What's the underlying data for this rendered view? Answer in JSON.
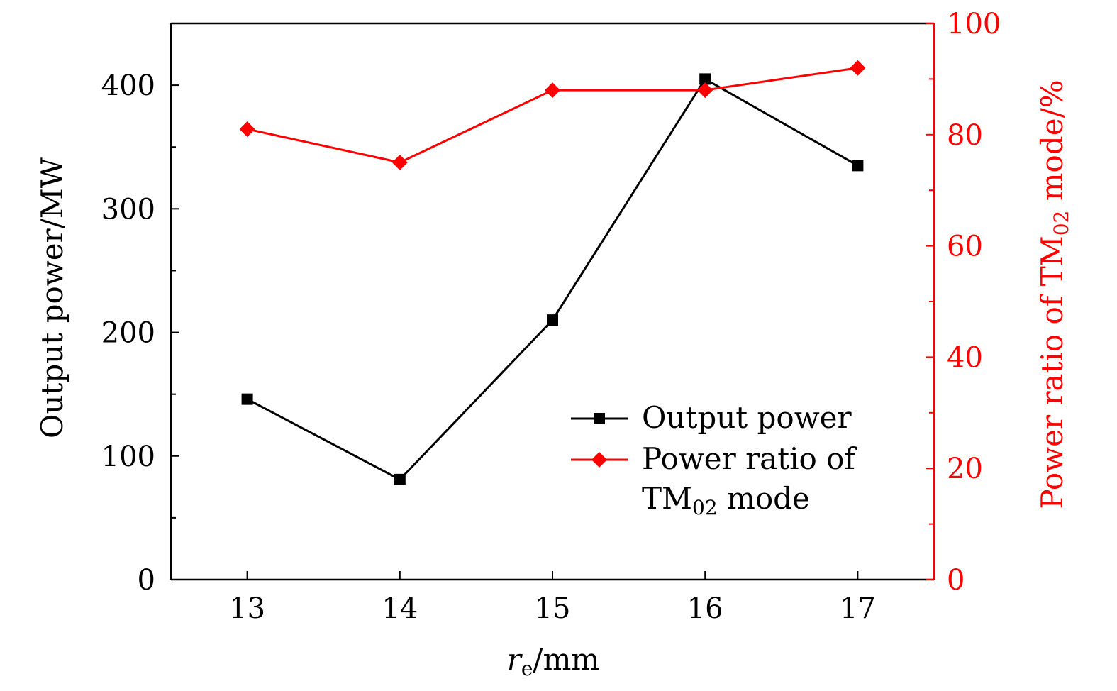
{
  "chart_data": {
    "type": "line",
    "x": [
      13,
      14,
      15,
      16,
      17
    ],
    "xlabel": "r",
    "xlabel_sub": "e",
    "xlabel_unit": "/mm",
    "xlim": [
      12.5,
      17.5
    ],
    "xticks": [
      "13",
      "14",
      "15",
      "16",
      "17"
    ],
    "y_left": {
      "label": "Output power/MW",
      "lim": [
        0,
        450
      ],
      "ticks": [
        "0",
        "100",
        "200",
        "300",
        "400"
      ],
      "color": "#000000"
    },
    "y_right": {
      "label_pre": "Power ratio of TM",
      "label_sub": "02",
      "label_post": " mode/%",
      "lim": [
        0,
        100
      ],
      "ticks": [
        "0",
        "20",
        "40",
        "60",
        "80",
        "100"
      ],
      "color": "#ff0000"
    },
    "series": [
      {
        "name": "Output power",
        "axis": "left",
        "color": "#000000",
        "marker": "square",
        "values": [
          146,
          81,
          210,
          405,
          335
        ]
      },
      {
        "name_pre": "Power ratio of",
        "name_line2": "TM",
        "name_sub": "02",
        "name_post": " mode",
        "axis": "right",
        "color": "#ff0000",
        "marker": "diamond",
        "values": [
          81,
          75,
          88,
          88,
          92
        ]
      }
    ],
    "grid": false,
    "legend_position": "bottom-right"
  }
}
